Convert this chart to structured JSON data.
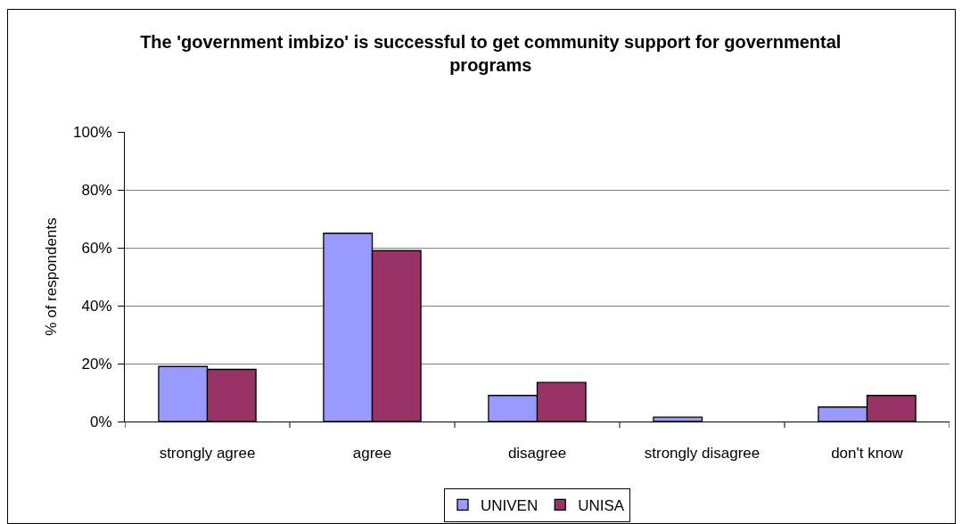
{
  "chart_data": {
    "type": "bar",
    "title": "The 'government imbizo' is successful to get community support for governmental programs",
    "ylabel": "% of respondents",
    "categories": [
      "strongly agree",
      "agree",
      "disagree",
      "strongly disagree",
      "don't know"
    ],
    "series": [
      {
        "name": "UNIVEN",
        "color": "#9999ff",
        "values": [
          19,
          65,
          9,
          1.5,
          5
        ]
      },
      {
        "name": "UNISA",
        "color": "#993366",
        "values": [
          18,
          59,
          13.5,
          0,
          9
        ]
      }
    ],
    "ylim": [
      0,
      100
    ],
    "yticks": [
      {
        "value": 0,
        "label": "0%"
      },
      {
        "value": 20,
        "label": "20%"
      },
      {
        "value": 40,
        "label": "40%"
      },
      {
        "value": 60,
        "label": "60%"
      },
      {
        "value": 80,
        "label": "80%"
      },
      {
        "value": 100,
        "label": "100%"
      }
    ],
    "grid": true,
    "legend": "bottom"
  }
}
